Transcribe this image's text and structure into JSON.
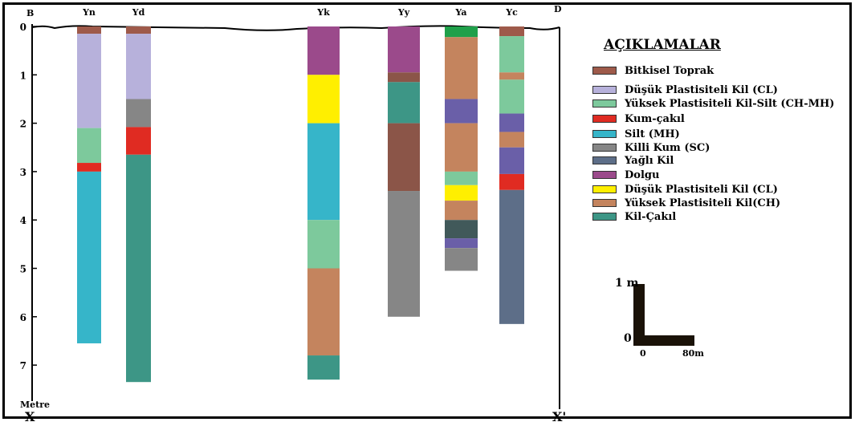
{
  "section": {
    "left_corner": "B",
    "right_corner": "D",
    "bottom_left": "X",
    "bottom_right": "X'",
    "axis_unit": "Metre",
    "depth_ticks": [
      "0",
      "1",
      "2",
      "3",
      "4",
      "5",
      "6",
      "7"
    ]
  },
  "legend": {
    "title": "AÇIKLAMALAR",
    "items": [
      {
        "key": "bitkisel",
        "label": "Bitkisel Toprak",
        "color": "#9e5a4a"
      },
      {
        "key": "cl_lilac",
        "label": "Düşük Plastisiteli Kil (CL)",
        "color": "#b7b1db"
      },
      {
        "key": "chmh",
        "label": "Yüksek Plastisiteli Kil-Silt (CH-MH)",
        "color": "#7dc99c"
      },
      {
        "key": "kumcakil",
        "label": "Kum-çakıl",
        "color": "#e02b22"
      },
      {
        "key": "silt",
        "label": "Silt (MH)",
        "color": "#36b5c9"
      },
      {
        "key": "sc",
        "label": "Killi Kum (SC)",
        "color": "#868686"
      },
      {
        "key": "yagli",
        "label": "Yağlı Kil",
        "color": "#5d6e88"
      },
      {
        "key": "dolgu",
        "label": "Dolgu",
        "color": "#9b4a8b"
      },
      {
        "key": "cl_yellow",
        "label": "Düşük Plastisiteli Kil (CL)",
        "color": "#ffef00"
      },
      {
        "key": "ch",
        "label": "Yüksek Plastisiteli Kil(CH)",
        "color": "#c4845e"
      },
      {
        "key": "kilcakil",
        "label": "Kil-Çakıl",
        "color": "#3d9686"
      }
    ]
  },
  "extra_colors": {
    "green_top": "#1fa04a",
    "purple_blue": "#6a5fa8",
    "dark_slate": "#41595a",
    "dark_brown": "#8b5548"
  },
  "boreholes": [
    {
      "name": "Yn",
      "layers": [
        {
          "from": 0,
          "to": 0.15,
          "color": "#9e5a4a"
        },
        {
          "from": 0.15,
          "to": 2.1,
          "color": "#b7b1db"
        },
        {
          "from": 2.1,
          "to": 2.82,
          "color": "#7dc99c"
        },
        {
          "from": 2.82,
          "to": 3.0,
          "color": "#e02b22"
        },
        {
          "from": 3.0,
          "to": 6.55,
          "color": "#36b5c9"
        }
      ]
    },
    {
      "name": "Yd",
      "layers": [
        {
          "from": 0,
          "to": 0.15,
          "color": "#9e5a4a"
        },
        {
          "from": 0.15,
          "to": 1.5,
          "color": "#b7b1db"
        },
        {
          "from": 1.5,
          "to": 2.08,
          "color": "#868686"
        },
        {
          "from": 2.08,
          "to": 2.65,
          "color": "#e02b22"
        },
        {
          "from": 2.65,
          "to": 7.35,
          "color": "#3d9686"
        }
      ]
    },
    {
      "name": "Yk",
      "layers": [
        {
          "from": 0,
          "to": 1.0,
          "color": "#9b4a8b"
        },
        {
          "from": 1.0,
          "to": 2.0,
          "color": "#ffef00"
        },
        {
          "from": 2.0,
          "to": 4.0,
          "color": "#36b5c9"
        },
        {
          "from": 4.0,
          "to": 5.0,
          "color": "#7dc99c"
        },
        {
          "from": 5.0,
          "to": 6.8,
          "color": "#c4845e"
        },
        {
          "from": 6.8,
          "to": 7.3,
          "color": "#3d9686"
        }
      ]
    },
    {
      "name": "Yy",
      "layers": [
        {
          "from": 0,
          "to": 0.95,
          "color": "#9b4a8b"
        },
        {
          "from": 0.95,
          "to": 1.15,
          "color": "#8b5548"
        },
        {
          "from": 1.15,
          "to": 2.0,
          "color": "#3d9686"
        },
        {
          "from": 2.0,
          "to": 3.4,
          "color": "#8b5548"
        },
        {
          "from": 3.4,
          "to": 6.0,
          "color": "#868686"
        }
      ]
    },
    {
      "name": "Ya",
      "layers": [
        {
          "from": 0,
          "to": 0.22,
          "color": "#1fa04a"
        },
        {
          "from": 0.22,
          "to": 1.5,
          "color": "#c4845e"
        },
        {
          "from": 1.5,
          "to": 2.0,
          "color": "#6a5fa8"
        },
        {
          "from": 2.0,
          "to": 3.0,
          "color": "#c4845e"
        },
        {
          "from": 3.0,
          "to": 3.28,
          "color": "#7dc99c"
        },
        {
          "from": 3.28,
          "to": 3.6,
          "color": "#ffef00"
        },
        {
          "from": 3.6,
          "to": 4.0,
          "color": "#c4845e"
        },
        {
          "from": 4.0,
          "to": 4.38,
          "color": "#41595a"
        },
        {
          "from": 4.38,
          "to": 4.58,
          "color": "#6a5fa8"
        },
        {
          "from": 4.58,
          "to": 5.05,
          "color": "#868686"
        }
      ]
    },
    {
      "name": "Yc",
      "layers": [
        {
          "from": 0,
          "to": 0.2,
          "color": "#9e5a4a"
        },
        {
          "from": 0.2,
          "to": 0.95,
          "color": "#7dc99c"
        },
        {
          "from": 0.95,
          "to": 1.1,
          "color": "#c4845e"
        },
        {
          "from": 1.1,
          "to": 1.8,
          "color": "#7dc99c"
        },
        {
          "from": 1.8,
          "to": 2.18,
          "color": "#6a5fa8"
        },
        {
          "from": 2.18,
          "to": 2.5,
          "color": "#c4845e"
        },
        {
          "from": 2.5,
          "to": 3.05,
          "color": "#6a5fa8"
        },
        {
          "from": 3.05,
          "to": 3.38,
          "color": "#e02b22"
        },
        {
          "from": 3.38,
          "to": 6.15,
          "color": "#5d6e88"
        }
      ]
    }
  ],
  "scale_bar": {
    "vertical_label": "1 m",
    "origin_label": "0",
    "h_start_label": "0",
    "h_end_label": "80m"
  }
}
